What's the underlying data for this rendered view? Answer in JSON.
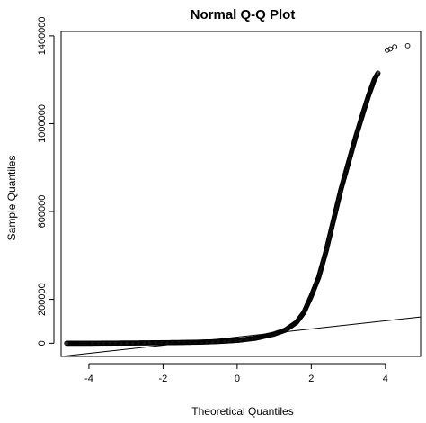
{
  "chart_data": {
    "type": "scatter",
    "title": "Normal Q-Q Plot",
    "xlabel": "Theoretical Quantiles",
    "ylabel": "Sample Quantiles",
    "xlim": [
      -4.75,
      4.95
    ],
    "ylim": [
      -60000,
      1420000
    ],
    "x_ticks": [
      -4,
      -2,
      0,
      2,
      4
    ],
    "x_tick_labels": [
      "-4",
      "-2",
      "0",
      "2",
      "4"
    ],
    "y_ticks": [
      0,
      200000,
      600000,
      1000000,
      1400000
    ],
    "y_tick_labels": [
      "0",
      "200000",
      "600000",
      "1000000",
      "1400000"
    ],
    "marker": "open-circle",
    "grid": false,
    "curve_points": [
      [
        -4.6,
        0
      ],
      [
        -4.3,
        0
      ],
      [
        -4.2,
        0
      ],
      [
        -4.1,
        0
      ],
      [
        -4.0,
        0
      ],
      [
        -3.5,
        500
      ],
      [
        -3.0,
        1000
      ],
      [
        -2.5,
        1500
      ],
      [
        -2.0,
        2500
      ],
      [
        -1.5,
        3500
      ],
      [
        -1.0,
        5000
      ],
      [
        -0.5,
        8000
      ],
      [
        0.0,
        13000
      ],
      [
        0.5,
        23000
      ],
      [
        1.0,
        42000
      ],
      [
        1.3,
        60000
      ],
      [
        1.6,
        95000
      ],
      [
        1.8,
        140000
      ],
      [
        2.0,
        215000
      ],
      [
        2.2,
        300000
      ],
      [
        2.4,
        420000
      ],
      [
        2.6,
        560000
      ],
      [
        2.8,
        700000
      ],
      [
        3.0,
        820000
      ],
      [
        3.2,
        940000
      ],
      [
        3.4,
        1050000
      ],
      [
        3.55,
        1130000
      ],
      [
        3.7,
        1200000
      ],
      [
        3.8,
        1230000
      ]
    ],
    "outliers": [
      {
        "x": 4.05,
        "y": 1335000
      },
      {
        "x": 4.13,
        "y": 1340000
      },
      {
        "x": 4.25,
        "y": 1350000
      },
      {
        "x": 4.6,
        "y": 1355000
      }
    ],
    "reference_line": {
      "x": [
        -4.75,
        4.95
      ],
      "y": [
        -60000,
        120000
      ]
    }
  }
}
